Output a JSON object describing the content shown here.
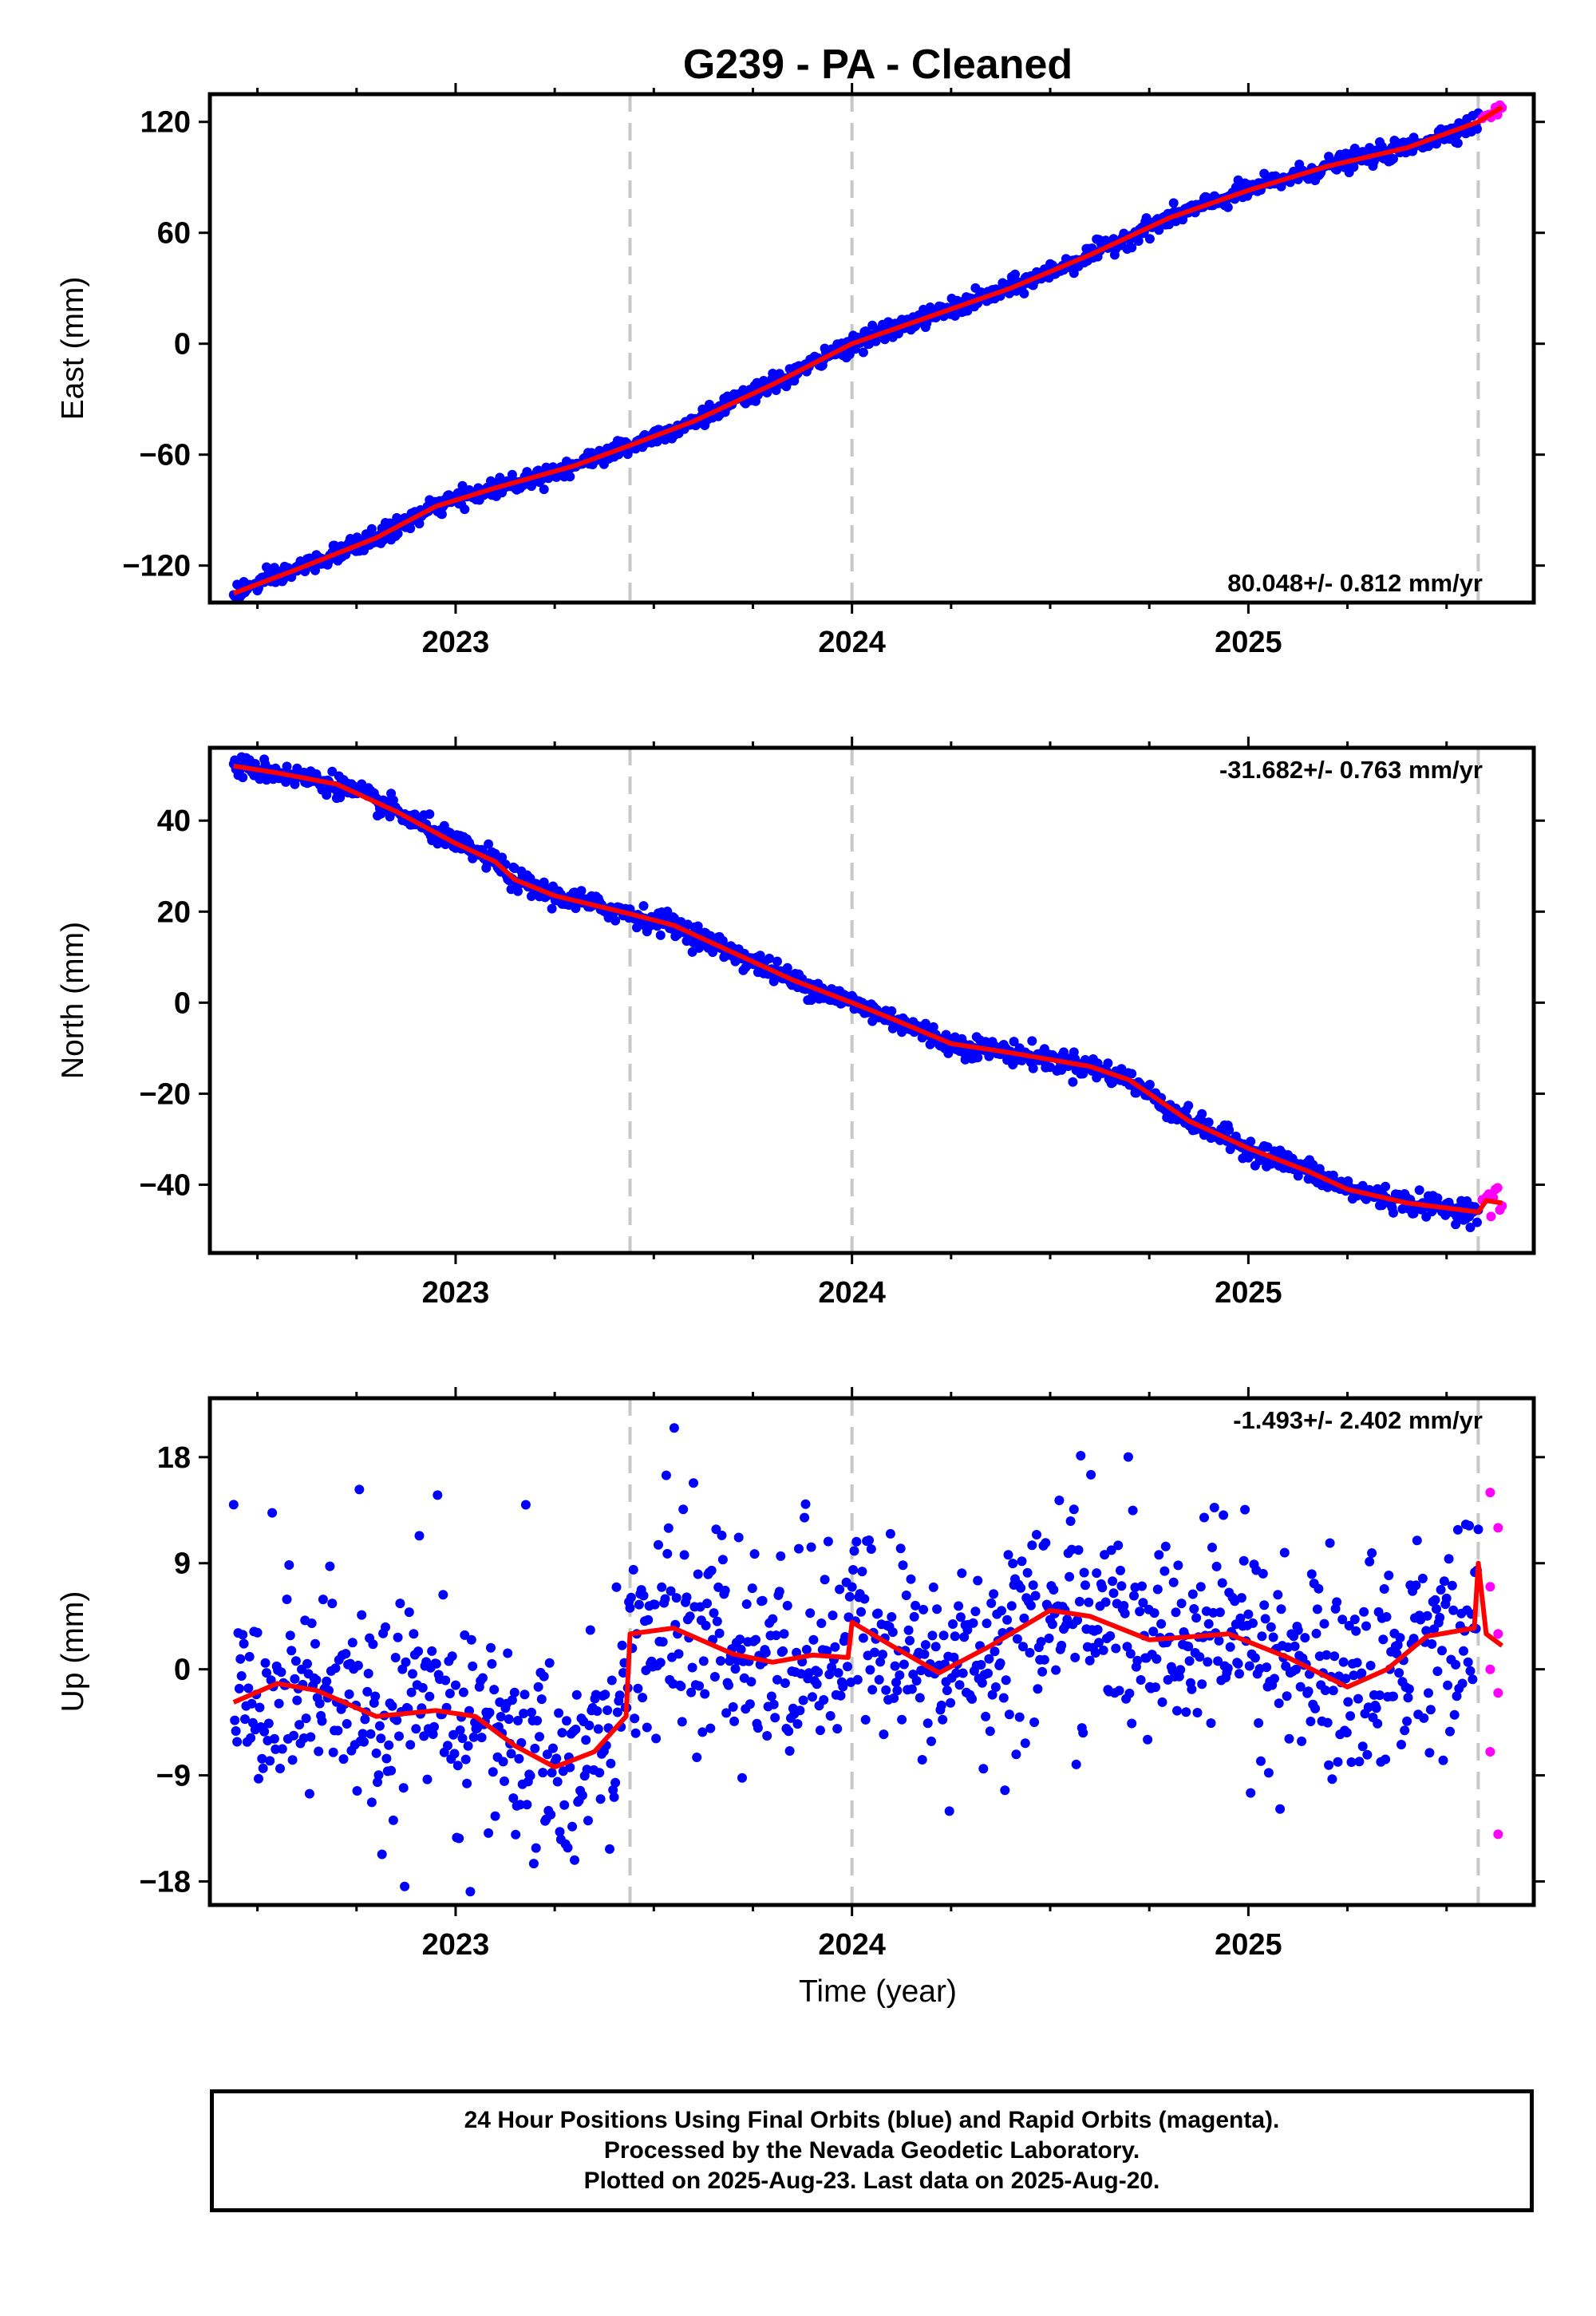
{
  "title": "G239  - PA - Cleaned",
  "colors": {
    "final": "#0000ff",
    "rapid": "#ff00ff",
    "model": "#ff0000",
    "offset_line": "#c8c8c8"
  },
  "xlabel": "Time (year)",
  "footer": {
    "line1": "24 Hour Positions Using Final Orbits (blue) and Rapid Orbits (magenta).",
    "line2": "Processed by the Nevada Geodetic Laboratory.",
    "line3": "Plotted on 2025-Aug-23. Last data on 2025-Aug-20."
  },
  "chart_data": [
    {
      "type": "scatter",
      "ylabel": "East (mm)",
      "rate": "80.048+/- 0.812 mm/yr",
      "xlim": [
        2022.38,
        2025.72
      ],
      "ylim": [
        -140,
        135
      ],
      "x_ticks": [
        2023,
        2024,
        2025
      ],
      "x_tick_labels": [
        "2023",
        "2024",
        "2025"
      ],
      "y_ticks": [
        -120,
        -60,
        0,
        60,
        120
      ],
      "y_tick_labels": [
        "−120",
        "−60",
        "0",
        "60",
        "120"
      ],
      "offset_lines": [
        2023.44,
        2024.0,
        2025.58
      ],
      "final_range": [
        2022.44,
        2025.58
      ],
      "rapid_range": [
        2025.59,
        2025.64
      ],
      "model": [
        [
          2022.44,
          -135
        ],
        [
          2022.6,
          -122
        ],
        [
          2022.8,
          -105
        ],
        [
          2022.95,
          -88
        ],
        [
          2023.1,
          -78
        ],
        [
          2023.3,
          -66
        ],
        [
          2023.44,
          -55
        ],
        [
          2023.6,
          -42
        ],
        [
          2023.8,
          -22
        ],
        [
          2024.0,
          0
        ],
        [
          2024.2,
          15
        ],
        [
          2024.4,
          30
        ],
        [
          2024.6,
          48
        ],
        [
          2024.8,
          68
        ],
        [
          2025.0,
          83
        ],
        [
          2025.2,
          96
        ],
        [
          2025.4,
          106
        ],
        [
          2025.58,
          120
        ],
        [
          2025.64,
          128
        ]
      ],
      "scatter_sigma": 2.5,
      "rapid_sigma": 1.5
    },
    {
      "type": "scatter",
      "ylabel": "North (mm)",
      "rate": "-31.682+/- 0.763 mm/yr",
      "xlim": [
        2022.38,
        2025.72
      ],
      "ylim": [
        -55,
        56
      ],
      "x_ticks": [
        2023,
        2024,
        2025
      ],
      "x_tick_labels": [
        "2023",
        "2024",
        "2025"
      ],
      "y_ticks": [
        -40,
        -20,
        0,
        20,
        40
      ],
      "y_tick_labels": [
        "−40",
        "−20",
        "0",
        "20",
        "40"
      ],
      "offset_lines": [
        2023.44,
        2024.0,
        2025.58
      ],
      "final_range": [
        2022.44,
        2025.58
      ],
      "rapid_range": [
        2025.59,
        2025.64
      ],
      "model": [
        [
          2022.44,
          52
        ],
        [
          2022.55,
          50.5
        ],
        [
          2022.7,
          48
        ],
        [
          2022.85,
          42
        ],
        [
          2023.0,
          35
        ],
        [
          2023.1,
          31
        ],
        [
          2023.15,
          27
        ],
        [
          2023.25,
          23.5
        ],
        [
          2023.44,
          19.5
        ],
        [
          2023.55,
          17
        ],
        [
          2023.7,
          11
        ],
        [
          2023.85,
          5
        ],
        [
          2024.0,
          0
        ],
        [
          2024.1,
          -3.5
        ],
        [
          2024.25,
          -9
        ],
        [
          2024.4,
          -11
        ],
        [
          2024.6,
          -14
        ],
        [
          2024.7,
          -17
        ],
        [
          2024.85,
          -26
        ],
        [
          2025.0,
          -32
        ],
        [
          2025.15,
          -37
        ],
        [
          2025.25,
          -41
        ],
        [
          2025.4,
          -44
        ],
        [
          2025.58,
          -46
        ],
        [
          2025.6,
          -43.5
        ],
        [
          2025.64,
          -44
        ]
      ],
      "scatter_sigma": 1.2,
      "rapid_sigma": 1.5
    },
    {
      "type": "scatter",
      "ylabel": "Up (mm)",
      "rate": "-1.493+/- 2.402 mm/yr",
      "xlim": [
        2022.38,
        2025.72
      ],
      "ylim": [
        -20,
        23
      ],
      "x_ticks": [
        2023,
        2024,
        2025
      ],
      "x_tick_labels": [
        "2023",
        "2024",
        "2025"
      ],
      "y_ticks": [
        -18,
        -9,
        0,
        9,
        18
      ],
      "y_tick_labels": [
        "−18",
        "−9",
        "0",
        "9",
        "18"
      ],
      "offset_lines": [
        2023.44,
        2024.0,
        2025.58
      ],
      "final_range": [
        2022.44,
        2025.58
      ],
      "rapid_range": [
        2025.59,
        2025.64
      ],
      "model": [
        [
          2022.44,
          -2.8
        ],
        [
          2022.55,
          -1.2
        ],
        [
          2022.65,
          -1.8
        ],
        [
          2022.8,
          -4
        ],
        [
          2022.95,
          -3.5
        ],
        [
          2023.05,
          -4
        ],
        [
          2023.15,
          -6.5
        ],
        [
          2023.25,
          -8.3
        ],
        [
          2023.35,
          -7
        ],
        [
          2023.43,
          -4
        ],
        [
          2023.44,
          3
        ],
        [
          2023.55,
          3.5
        ],
        [
          2023.7,
          1.3
        ],
        [
          2023.8,
          0.6
        ],
        [
          2023.9,
          1.2
        ],
        [
          2023.99,
          1.0
        ],
        [
          2024.0,
          4
        ],
        [
          2024.1,
          2
        ],
        [
          2024.22,
          -0.3
        ],
        [
          2024.35,
          2
        ],
        [
          2024.5,
          5
        ],
        [
          2024.6,
          4.5
        ],
        [
          2024.75,
          2.5
        ],
        [
          2024.95,
          3
        ],
        [
          2025.1,
          1
        ],
        [
          2025.25,
          -1.5
        ],
        [
          2025.35,
          0
        ],
        [
          2025.45,
          2.8
        ],
        [
          2025.57,
          3.5
        ],
        [
          2025.58,
          9
        ],
        [
          2025.6,
          3
        ],
        [
          2025.64,
          2
        ]
      ],
      "scatter_sigma": 4.2,
      "rapid_values": [
        15,
        12,
        7,
        3,
        0,
        -2,
        -7,
        -14
      ]
    }
  ]
}
